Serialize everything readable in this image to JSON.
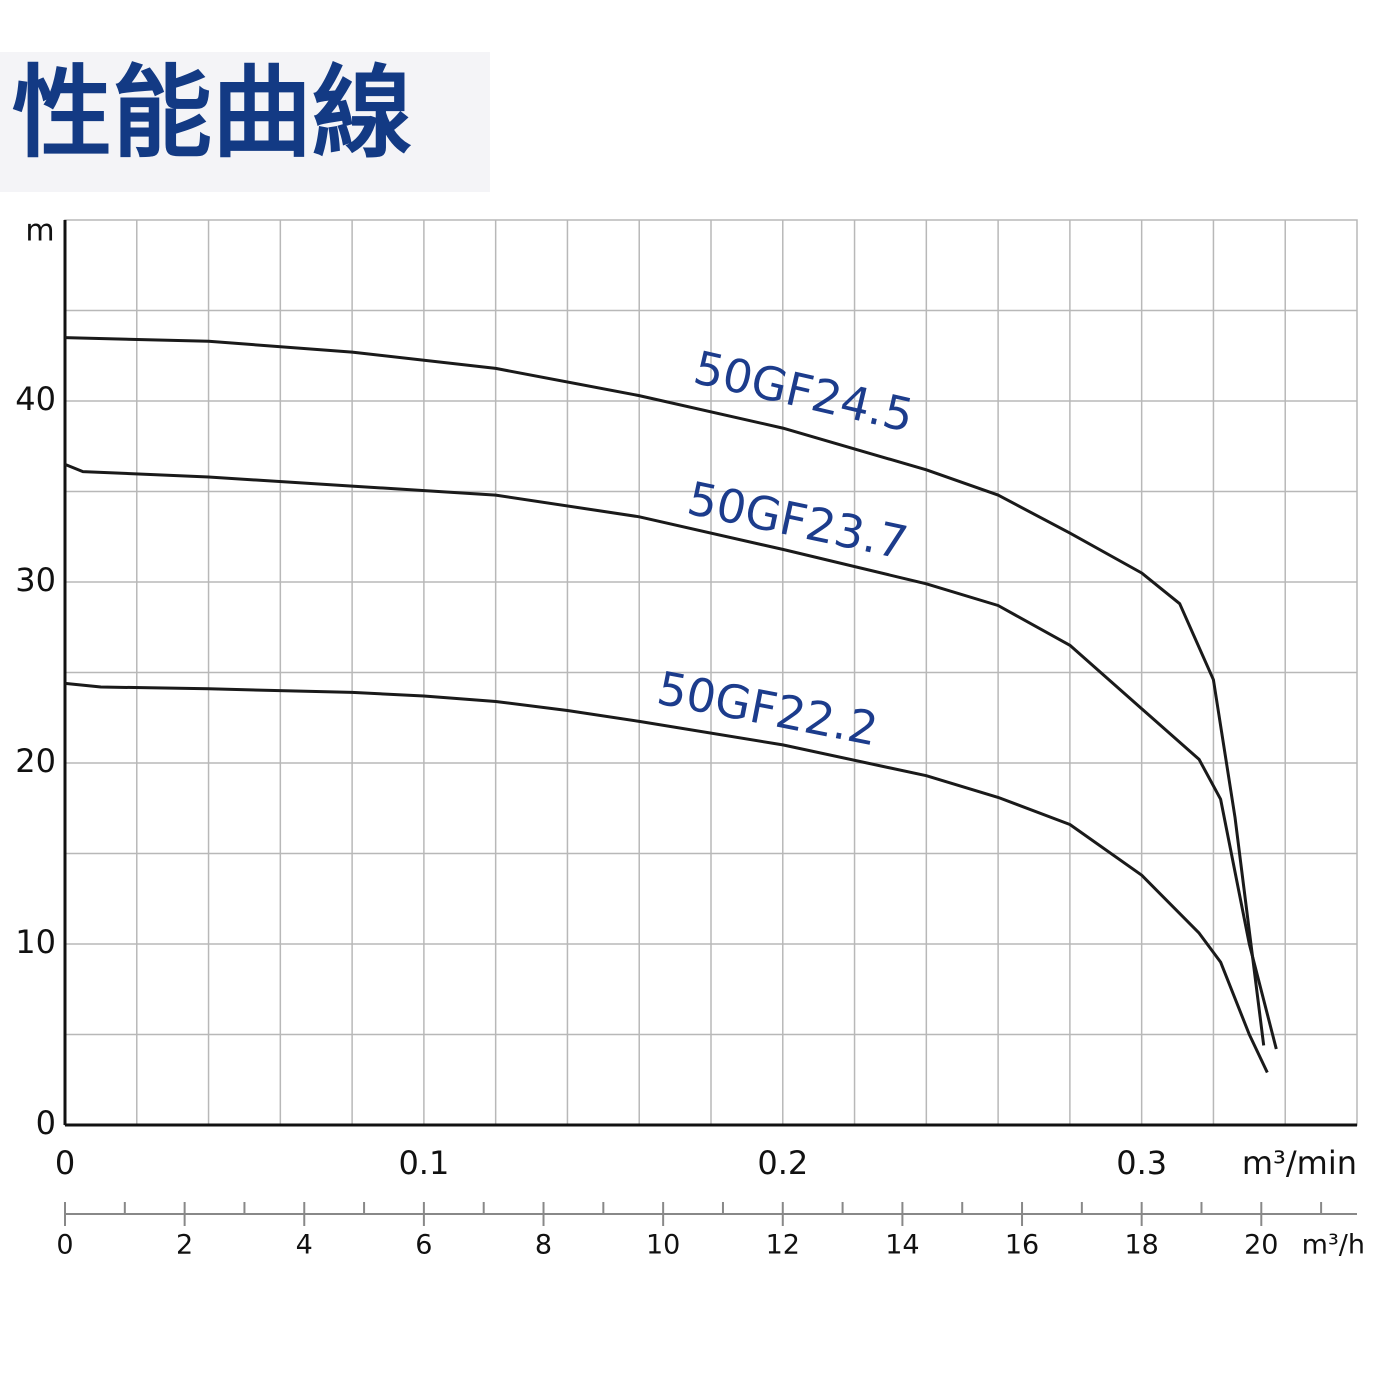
{
  "chart_data": {
    "type": "line",
    "title": "性能曲線",
    "y_label": "m",
    "x_label": "m³/min",
    "x2_label": "m³/h",
    "xlim": [
      0,
      0.36
    ],
    "xticks": [
      0,
      0.1,
      0.2,
      0.3
    ],
    "xgrid": [
      0.02,
      0.04,
      0.06,
      0.08,
      0.1,
      0.12,
      0.14,
      0.16,
      0.18,
      0.2,
      0.22,
      0.24,
      0.26,
      0.28,
      0.3,
      0.32,
      0.34
    ],
    "x2lim": [
      0,
      21.6
    ],
    "x2ticks": [
      0,
      2,
      4,
      6,
      8,
      10,
      12,
      14,
      16,
      18,
      20
    ],
    "x2minor": [
      1,
      3,
      5,
      7,
      9,
      11,
      13,
      15,
      17,
      19,
      21
    ],
    "ylim": [
      0,
      50
    ],
    "yticks": [
      0,
      10,
      20,
      30,
      40
    ],
    "ygrid": [
      5,
      10,
      15,
      20,
      25,
      30,
      35,
      40,
      45
    ],
    "grid": true,
    "label_color": "#1c3c8c",
    "series": [
      {
        "name": "50GF24.5",
        "color": "#1a1a1a",
        "x": [
          0,
          0.04,
          0.08,
          0.12,
          0.16,
          0.2,
          0.24,
          0.26,
          0.28,
          0.3,
          0.3106,
          0.32,
          0.326,
          0.334
        ],
        "values": [
          43.5,
          43.3,
          42.7,
          41.8,
          40.3,
          38.5,
          36.2,
          34.8,
          32.7,
          30.5,
          28.8,
          24.6,
          17,
          4.4
        ]
      },
      {
        "name": "50GF23.7",
        "color": "#1a1a1a",
        "x": [
          0,
          0.005,
          0.04,
          0.08,
          0.12,
          0.16,
          0.2,
          0.24,
          0.26,
          0.28,
          0.3,
          0.316,
          0.322,
          0.33,
          0.3375
        ],
        "values": [
          36.5,
          36.1,
          35.8,
          35.3,
          34.8,
          33.6,
          31.8,
          29.9,
          28.7,
          26.5,
          23,
          20.2,
          18,
          10,
          4.2
        ]
      },
      {
        "name": "50GF22.2",
        "color": "#1a1a1a",
        "x": [
          0,
          0.01,
          0.04,
          0.08,
          0.1,
          0.12,
          0.14,
          0.16,
          0.2,
          0.24,
          0.26,
          0.28,
          0.3,
          0.316,
          0.322,
          0.33,
          0.335
        ],
        "values": [
          24.4,
          24.2,
          24.1,
          23.9,
          23.7,
          23.4,
          22.9,
          22.3,
          21,
          19.3,
          18.1,
          16.6,
          13.8,
          10.6,
          9,
          5,
          2.9
        ]
      }
    ]
  }
}
